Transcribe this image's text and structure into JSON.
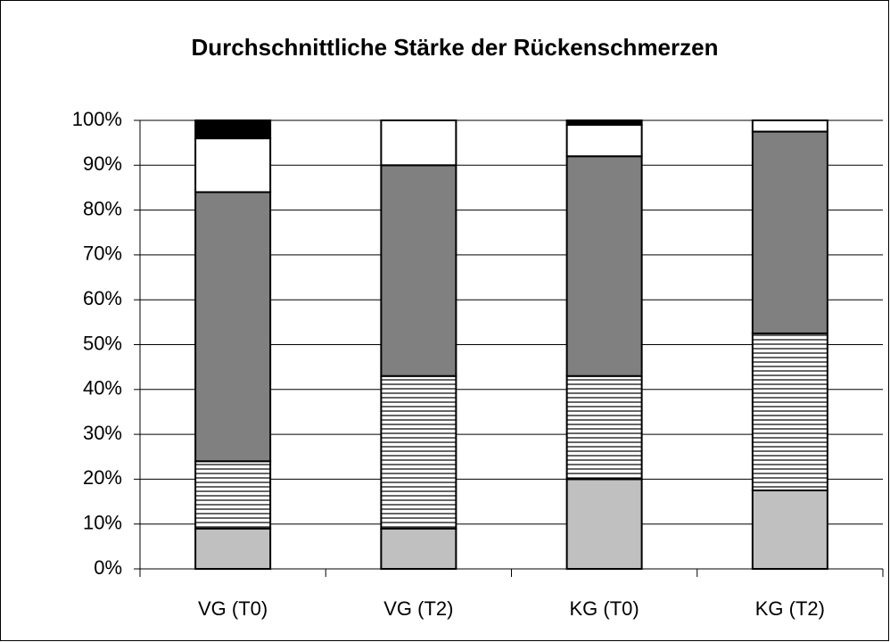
{
  "chart_data": {
    "type": "stacked-bar",
    "title": "Durchschnittliche Stärke der Rückenschmerzen",
    "categories": [
      "VG (T0)",
      "VG (T2)",
      "KG (T0)",
      "KG (T2)"
    ],
    "series": [
      {
        "color": "#c0c0c0",
        "values": [
          9,
          9,
          20,
          17.5
        ]
      },
      {
        "color": "#ffffff",
        "pattern": "horizontal-lines",
        "values": [
          15,
          34,
          23,
          35
        ]
      },
      {
        "color": "#808080",
        "values": [
          60,
          47,
          49,
          45
        ]
      },
      {
        "color": "#ffffff",
        "values": [
          12,
          10,
          7,
          2.5
        ]
      },
      {
        "color": "#000000",
        "values": [
          4,
          0,
          1,
          0
        ]
      }
    ],
    "ylim": [
      0,
      100
    ],
    "yticks": [
      {
        "value": 0,
        "label": "0%"
      },
      {
        "value": 10,
        "label": "10%"
      },
      {
        "value": 20,
        "label": "20%"
      },
      {
        "value": 30,
        "label": "30%"
      },
      {
        "value": 40,
        "label": "40%"
      },
      {
        "value": 50,
        "label": "50%"
      },
      {
        "value": 60,
        "label": "60%"
      },
      {
        "value": 70,
        "label": "70%"
      },
      {
        "value": 80,
        "label": "80%"
      },
      {
        "value": 90,
        "label": "90%"
      },
      {
        "value": 100,
        "label": "100%"
      }
    ],
    "grid": true
  }
}
